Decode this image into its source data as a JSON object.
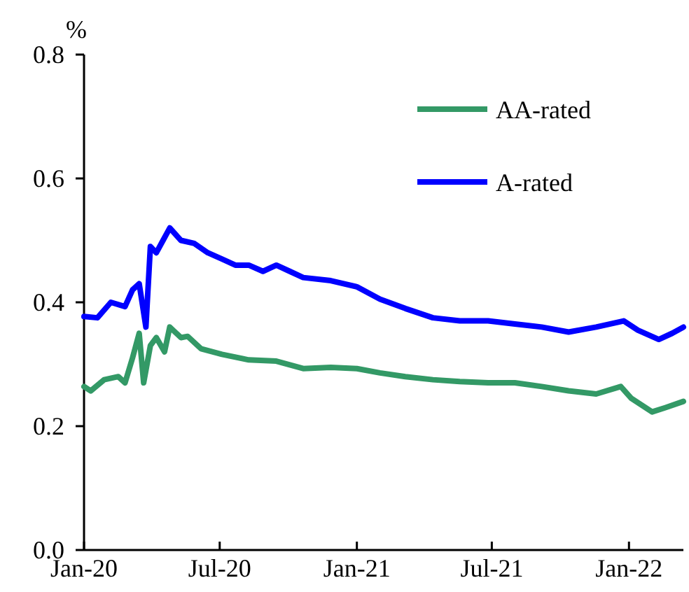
{
  "chart_data": {
    "type": "line",
    "ylabel": "%",
    "xlim": [
      "2020-01-01",
      "2022-03-15"
    ],
    "xticks": [
      {
        "value": "2020-01-01",
        "label": "Jan-20"
      },
      {
        "value": "2020-07-01",
        "label": "Jul-20"
      },
      {
        "value": "2021-01-01",
        "label": "Jan-21"
      },
      {
        "value": "2021-07-01",
        "label": "Jul-21"
      },
      {
        "value": "2022-01-01",
        "label": "Jan-22"
      }
    ],
    "ylim": [
      0,
      0.8
    ],
    "yticks": [
      {
        "value": 0,
        "label": "0.0"
      },
      {
        "value": 0.2,
        "label": "0.2"
      },
      {
        "value": 0.4,
        "label": "0.4"
      },
      {
        "value": 0.6,
        "label": "0.6"
      },
      {
        "value": 0.8,
        "label": "0.8"
      }
    ],
    "grid": false,
    "legend": "top right",
    "line_style": "solid",
    "marker": "none",
    "series": [
      {
        "name": "AA-rated",
        "color": "#339966",
        "x": [
          "2020-01-01",
          "2020-01-10",
          "2020-01-28",
          "2020-02-16",
          "2020-02-25",
          "2020-03-06",
          "2020-03-15",
          "2020-03-21",
          "2020-03-30",
          "2020-04-07",
          "2020-04-18",
          "2020-04-25",
          "2020-05-10",
          "2020-05-19",
          "2020-06-06",
          "2020-07-04",
          "2020-08-09",
          "2020-09-15",
          "2020-10-21",
          "2020-11-27",
          "2021-01-01",
          "2021-02-01",
          "2021-03-07",
          "2021-04-13",
          "2021-05-19",
          "2021-06-26",
          "2021-08-01",
          "2021-09-06",
          "2021-10-12",
          "2021-11-18",
          "2021-12-21",
          "2022-01-04",
          "2022-02-01",
          "2022-02-19",
          "2022-03-15"
        ],
        "values": [
          0.264,
          0.257,
          0.275,
          0.28,
          0.27,
          0.31,
          0.35,
          0.27,
          0.33,
          0.343,
          0.32,
          0.36,
          0.343,
          0.345,
          0.325,
          0.316,
          0.307,
          0.305,
          0.293,
          0.295,
          0.293,
          0.286,
          0.28,
          0.275,
          0.272,
          0.27,
          0.27,
          0.264,
          0.257,
          0.252,
          0.264,
          0.245,
          0.223,
          0.23,
          0.24
        ]
      },
      {
        "name": "A-rated",
        "color": "#0000ff",
        "x": [
          "2020-01-01",
          "2020-01-19",
          "2020-02-06",
          "2020-02-25",
          "2020-03-06",
          "2020-03-15",
          "2020-03-24",
          "2020-03-30",
          "2020-04-07",
          "2020-04-16",
          "2020-04-25",
          "2020-05-10",
          "2020-05-28",
          "2020-06-15",
          "2020-07-04",
          "2020-07-22",
          "2020-08-09",
          "2020-08-28",
          "2020-09-15",
          "2020-10-03",
          "2020-10-21",
          "2020-11-27",
          "2021-01-01",
          "2021-02-01",
          "2021-03-07",
          "2021-04-13",
          "2021-05-19",
          "2021-06-26",
          "2021-08-01",
          "2021-09-06",
          "2021-10-12",
          "2021-11-18",
          "2021-12-25",
          "2022-01-13",
          "2022-02-10",
          "2022-02-28",
          "2022-03-15"
        ],
        "values": [
          0.377,
          0.375,
          0.4,
          0.393,
          0.42,
          0.43,
          0.36,
          0.49,
          0.48,
          0.5,
          0.52,
          0.5,
          0.495,
          0.48,
          0.47,
          0.46,
          0.46,
          0.45,
          0.46,
          0.45,
          0.44,
          0.435,
          0.425,
          0.405,
          0.39,
          0.375,
          0.37,
          0.37,
          0.365,
          0.36,
          0.352,
          0.36,
          0.37,
          0.355,
          0.34,
          0.35,
          0.36
        ]
      }
    ]
  }
}
